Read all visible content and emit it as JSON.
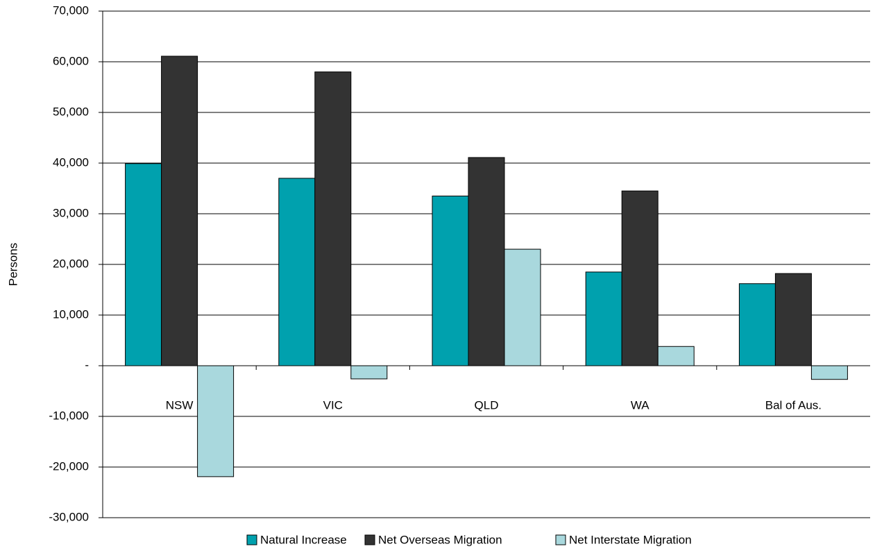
{
  "chart_data": {
    "type": "bar",
    "y_label": "Persons",
    "categories": [
      "NSW",
      "VIC",
      "QLD",
      "WA",
      "Bal of Aus."
    ],
    "series": [
      {
        "name": "Natural Increase",
        "color": "#00a1ae",
        "values": [
          39900,
          37000,
          33500,
          18500,
          16200
        ]
      },
      {
        "name": "Net Overseas Migration",
        "color": "#333333",
        "values": [
          61100,
          58000,
          41100,
          34500,
          18200
        ]
      },
      {
        "name": "Net Interstate Migration",
        "color": "#a9d8dd",
        "values": [
          -21900,
          -2600,
          23000,
          3800,
          -2700
        ]
      }
    ],
    "ylim": [
      -30000,
      70000
    ],
    "yticks": [
      {
        "value": -30000,
        "label": "-30,000"
      },
      {
        "value": -20000,
        "label": "-20,000"
      },
      {
        "value": -10000,
        "label": "-10,000"
      },
      {
        "value": 0,
        "label": "-"
      },
      {
        "value": 10000,
        "label": "10,000"
      },
      {
        "value": 20000,
        "label": "20,000"
      },
      {
        "value": 30000,
        "label": "30,000"
      },
      {
        "value": 40000,
        "label": "40,000"
      },
      {
        "value": 50000,
        "label": "50,000"
      },
      {
        "value": 60000,
        "label": "60,000"
      },
      {
        "value": 70000,
        "label": "70,000"
      }
    ],
    "grid": true,
    "legend": "bottom"
  }
}
